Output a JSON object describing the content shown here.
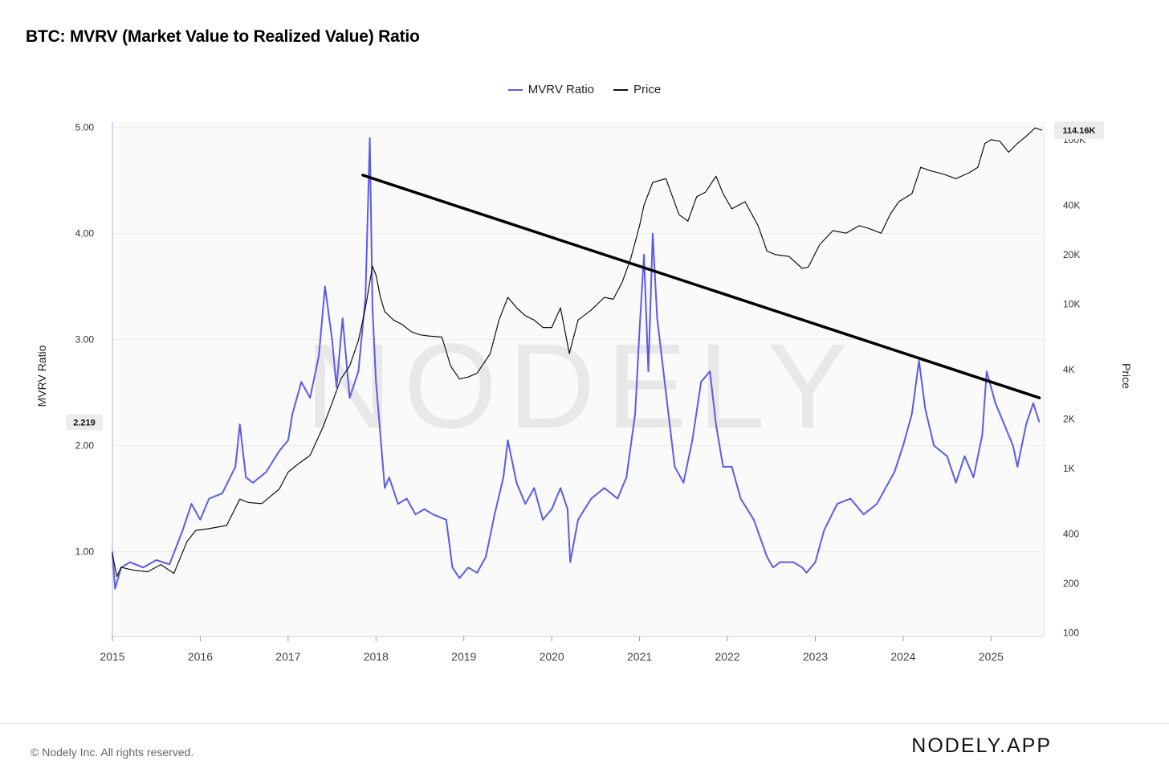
{
  "title": "BTC: MVRV (Market Value to Realized Value) Ratio",
  "legend": [
    {
      "label": "MVRV Ratio",
      "color": "#5b5be6"
    },
    {
      "label": "Price",
      "color": "#111111"
    }
  ],
  "footer": {
    "copyright": "© Nodely Inc. All rights reserved.",
    "brand": "NODELY.APP"
  },
  "watermark": "NODELY",
  "chart_data": {
    "type": "line",
    "title": "BTC: MVRV (Market Value to Realized Value) Ratio",
    "xlabel": "",
    "ylabel": "MVRV Ratio",
    "y2label": "Price",
    "x_ticks": [
      "2015",
      "2016",
      "2017",
      "2018",
      "2019",
      "2020",
      "2021",
      "2022",
      "2023",
      "2024",
      "2025"
    ],
    "xlim": [
      2015.0,
      2025.6
    ],
    "ylim": [
      0.2,
      5.05
    ],
    "y_ticks": [
      "1.00",
      "2.00",
      "3.00",
      "4.00",
      "5.00"
    ],
    "y2_scale": "log",
    "y2lim": [
      95,
      128000
    ],
    "y2_ticks": [
      {
        "label": "100",
        "value": 100
      },
      {
        "label": "200",
        "value": 200
      },
      {
        "label": "400",
        "value": 400
      },
      {
        "label": "1K",
        "value": 1000
      },
      {
        "label": "2K",
        "value": 2000
      },
      {
        "label": "4K",
        "value": 4000
      },
      {
        "label": "10K",
        "value": 10000
      },
      {
        "label": "20K",
        "value": 20000
      },
      {
        "label": "40K",
        "value": 40000
      },
      {
        "label": "100K",
        "value": 100000
      }
    ],
    "current_labels": {
      "mvrv": "2.219",
      "price": "114.16K"
    },
    "series": [
      {
        "name": "MVRV Ratio",
        "axis": "left",
        "color": "#5b5be6",
        "x": [
          2015.0,
          2015.03,
          2015.1,
          2015.2,
          2015.35,
          2015.5,
          2015.65,
          2015.8,
          2015.9,
          2016.0,
          2016.1,
          2016.25,
          2016.4,
          2016.45,
          2016.52,
          2016.6,
          2016.75,
          2016.9,
          2017.0,
          2017.05,
          2017.15,
          2017.25,
          2017.35,
          2017.42,
          2017.5,
          2017.55,
          2017.62,
          2017.7,
          2017.8,
          2017.88,
          2017.93,
          2017.96,
          2018.0,
          2018.05,
          2018.1,
          2018.15,
          2018.25,
          2018.35,
          2018.45,
          2018.55,
          2018.65,
          2018.8,
          2018.87,
          2018.95,
          2019.05,
          2019.15,
          2019.25,
          2019.35,
          2019.45,
          2019.5,
          2019.6,
          2019.7,
          2019.8,
          2019.9,
          2020.0,
          2020.1,
          2020.18,
          2020.21,
          2020.3,
          2020.45,
          2020.6,
          2020.75,
          2020.85,
          2020.95,
          2021.0,
          2021.05,
          2021.1,
          2021.15,
          2021.2,
          2021.3,
          2021.4,
          2021.5,
          2021.6,
          2021.7,
          2021.8,
          2021.87,
          2021.95,
          2022.05,
          2022.15,
          2022.3,
          2022.45,
          2022.52,
          2022.6,
          2022.75,
          2022.85,
          2022.9,
          2023.0,
          2023.1,
          2023.25,
          2023.4,
          2023.55,
          2023.7,
          2023.8,
          2023.9,
          2024.0,
          2024.1,
          2024.18,
          2024.25,
          2024.35,
          2024.5,
          2024.6,
          2024.7,
          2024.8,
          2024.9,
          2024.95,
          2025.05,
          2025.15,
          2025.25,
          2025.3,
          2025.4,
          2025.48,
          2025.55
        ],
        "values": [
          1.0,
          0.65,
          0.85,
          0.9,
          0.85,
          0.92,
          0.88,
          1.2,
          1.45,
          1.3,
          1.5,
          1.55,
          1.8,
          2.2,
          1.7,
          1.65,
          1.75,
          1.95,
          2.05,
          2.3,
          2.6,
          2.45,
          2.85,
          3.5,
          3.0,
          2.55,
          3.2,
          2.45,
          2.7,
          3.4,
          4.9,
          3.3,
          2.6,
          2.1,
          1.6,
          1.7,
          1.45,
          1.5,
          1.35,
          1.4,
          1.35,
          1.3,
          0.85,
          0.75,
          0.85,
          0.8,
          0.95,
          1.35,
          1.7,
          2.05,
          1.65,
          1.45,
          1.6,
          1.3,
          1.4,
          1.6,
          1.4,
          0.9,
          1.3,
          1.5,
          1.6,
          1.5,
          1.7,
          2.3,
          3.1,
          3.8,
          2.7,
          4.0,
          3.2,
          2.5,
          1.8,
          1.65,
          2.05,
          2.6,
          2.7,
          2.2,
          1.8,
          1.8,
          1.5,
          1.3,
          0.95,
          0.85,
          0.9,
          0.9,
          0.85,
          0.8,
          0.9,
          1.2,
          1.45,
          1.5,
          1.35,
          1.45,
          1.6,
          1.75,
          2.0,
          2.3,
          2.8,
          2.35,
          2.0,
          1.9,
          1.65,
          1.9,
          1.7,
          2.1,
          2.7,
          2.4,
          2.2,
          2.0,
          1.8,
          2.2,
          2.4,
          2.22
        ]
      },
      {
        "name": "Price",
        "axis": "right",
        "color": "#111111",
        "x": [
          2015.0,
          2015.05,
          2015.1,
          2015.25,
          2015.4,
          2015.55,
          2015.7,
          2015.85,
          2015.95,
          2016.1,
          2016.3,
          2016.45,
          2016.55,
          2016.7,
          2016.9,
          2017.0,
          2017.1,
          2017.25,
          2017.4,
          2017.5,
          2017.6,
          2017.7,
          2017.8,
          2017.88,
          2017.96,
          2018.0,
          2018.05,
          2018.1,
          2018.2,
          2018.3,
          2018.4,
          2018.5,
          2018.6,
          2018.75,
          2018.85,
          2018.95,
          2019.05,
          2019.15,
          2019.3,
          2019.4,
          2019.5,
          2019.6,
          2019.7,
          2019.8,
          2019.9,
          2020.0,
          2020.1,
          2020.2,
          2020.3,
          2020.45,
          2020.6,
          2020.7,
          2020.8,
          2020.9,
          2021.0,
          2021.05,
          2021.15,
          2021.3,
          2021.45,
          2021.55,
          2021.65,
          2021.75,
          2021.87,
          2021.95,
          2022.05,
          2022.2,
          2022.35,
          2022.45,
          2022.55,
          2022.7,
          2022.85,
          2022.92,
          2023.05,
          2023.2,
          2023.35,
          2023.5,
          2023.6,
          2023.75,
          2023.85,
          2023.95,
          2024.1,
          2024.2,
          2024.3,
          2024.45,
          2024.6,
          2024.75,
          2024.85,
          2024.93,
          2025.0,
          2025.1,
          2025.2,
          2025.3,
          2025.4,
          2025.5,
          2025.58
        ],
        "values": [
          300,
          220,
          250,
          240,
          235,
          260,
          230,
          360,
          420,
          430,
          450,
          650,
          620,
          610,
          750,
          950,
          1050,
          1200,
          1800,
          2500,
          3500,
          4200,
          6000,
          9500,
          17000,
          15000,
          11000,
          9000,
          8000,
          7500,
          6800,
          6500,
          6400,
          6300,
          4200,
          3500,
          3600,
          3800,
          5000,
          8000,
          11000,
          9500,
          8500,
          8000,
          7200,
          7200,
          9500,
          5000,
          8000,
          9200,
          11000,
          10700,
          13500,
          19000,
          30000,
          40000,
          55000,
          58000,
          35000,
          32000,
          45000,
          48000,
          60000,
          47000,
          38000,
          42000,
          30000,
          21000,
          20000,
          19500,
          16500,
          16800,
          23000,
          28000,
          27000,
          30000,
          29000,
          27000,
          35000,
          42000,
          47000,
          68000,
          65000,
          62000,
          58000,
          63000,
          68000,
          95000,
          100000,
          98000,
          84000,
          95000,
          105000,
          118000,
          114160
        ]
      }
    ],
    "trendline": {
      "from": {
        "x": 2017.85,
        "y": 4.55
      },
      "to": {
        "x": 2025.55,
        "y": 2.45
      }
    }
  }
}
